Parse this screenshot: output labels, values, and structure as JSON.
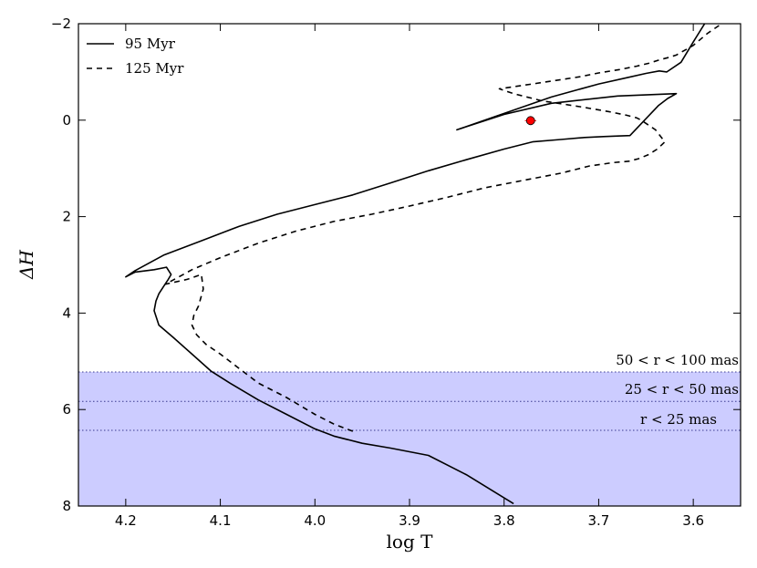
{
  "chart_data": {
    "type": "line",
    "xlabel": "log T",
    "ylabel": "ΔH",
    "xlim": [
      4.25,
      3.55
    ],
    "ylim": [
      8,
      -2
    ],
    "xticks": [
      4.2,
      4.1,
      4.0,
      3.9,
      3.8,
      3.7,
      3.6
    ],
    "yticks": [
      -2,
      0,
      2,
      4,
      6,
      8
    ],
    "xtick_labels": [
      "4.2",
      "4.1",
      "4.0",
      "3.9",
      "3.8",
      "3.7",
      "3.6"
    ],
    "ytick_labels": [
      "−2",
      "0",
      "2",
      "4",
      "6",
      "8"
    ],
    "legend": {
      "placement": "top-left",
      "entries": [
        {
          "label": "95 Myr",
          "style": "solid"
        },
        {
          "label": "125 Myr",
          "style": "dashed"
        }
      ]
    },
    "shaded_region": {
      "y_from": 5.22,
      "y_to": 8,
      "color": "#ccccff"
    },
    "hlines": [
      {
        "y": 5.22,
        "label": "50 < r < 100 mas"
      },
      {
        "y": 5.83,
        "label": "25 < r < 50 mas"
      },
      {
        "y": 6.43,
        "label": "r < 25 mas"
      }
    ],
    "point": {
      "x": 3.772,
      "y": 0.01,
      "xerr": 0.006,
      "yerr": 0.06,
      "color": "#ff0000"
    },
    "series": [
      {
        "name": "95 Myr",
        "style": "solid",
        "x": [
          3.79,
          3.84,
          3.88,
          3.92,
          3.95,
          3.98,
          4.0,
          4.03,
          4.06,
          4.09,
          4.11,
          4.13,
          4.15,
          4.165,
          4.17,
          4.168,
          4.165,
          4.16,
          4.155,
          4.152,
          4.157,
          4.17,
          4.19,
          4.2,
          4.19,
          4.16,
          4.12,
          4.08,
          4.04,
          4.0,
          3.96,
          3.92,
          3.88,
          3.84,
          3.8,
          3.77,
          3.74,
          3.715,
          3.695,
          3.683,
          3.667,
          3.637,
          3.627,
          3.618,
          3.68,
          3.75,
          3.8,
          3.85,
          3.75,
          3.7,
          3.67,
          3.65,
          3.636,
          3.628,
          3.613,
          3.6,
          3.588
        ],
        "y": [
          7.95,
          7.35,
          6.95,
          6.8,
          6.7,
          6.55,
          6.4,
          6.1,
          5.8,
          5.45,
          5.2,
          4.85,
          4.5,
          4.25,
          3.95,
          3.75,
          3.6,
          3.45,
          3.3,
          3.2,
          3.05,
          3.1,
          3.15,
          3.25,
          3.12,
          2.8,
          2.5,
          2.2,
          1.95,
          1.75,
          1.55,
          1.3,
          1.05,
          0.82,
          0.6,
          0.45,
          0.4,
          0.36,
          0.34,
          0.33,
          0.32,
          -0.3,
          -0.45,
          -0.55,
          -0.5,
          -0.35,
          -0.12,
          0.2,
          -0.48,
          -0.75,
          -0.88,
          -0.97,
          -1.02,
          -1.0,
          -1.2,
          -1.62,
          -2.0
        ]
      },
      {
        "name": "125 Myr",
        "style": "dashed",
        "x": [
          3.96,
          3.98,
          4.0,
          4.03,
          4.06,
          4.08,
          4.1,
          4.115,
          4.125,
          4.13,
          4.128,
          4.123,
          4.118,
          4.12,
          4.135,
          4.158,
          4.13,
          4.1,
          4.06,
          4.02,
          3.98,
          3.94,
          3.9,
          3.86,
          3.82,
          3.78,
          3.74,
          3.71,
          3.685,
          3.668,
          3.658,
          3.648,
          3.638,
          3.63,
          3.64,
          3.655,
          3.66,
          3.67,
          3.69,
          3.72,
          3.76,
          3.79,
          3.805,
          3.77,
          3.72,
          3.7,
          3.678,
          3.66,
          3.647,
          3.636,
          3.626,
          3.618,
          3.6,
          3.585,
          3.57
        ],
        "y": [
          6.45,
          6.3,
          6.1,
          5.75,
          5.45,
          5.15,
          4.85,
          4.65,
          4.45,
          4.25,
          4.05,
          3.85,
          3.5,
          3.2,
          3.3,
          3.4,
          3.1,
          2.85,
          2.55,
          2.3,
          2.1,
          1.95,
          1.78,
          1.6,
          1.4,
          1.25,
          1.1,
          0.95,
          0.88,
          0.85,
          0.8,
          0.72,
          0.6,
          0.45,
          0.2,
          0.0,
          -0.05,
          -0.1,
          -0.18,
          -0.28,
          -0.4,
          -0.55,
          -0.65,
          -0.75,
          -0.9,
          -0.98,
          -1.05,
          -1.12,
          -1.18,
          -1.25,
          -1.3,
          -1.35,
          -1.55,
          -1.8,
          -2.0
        ]
      }
    ]
  }
}
